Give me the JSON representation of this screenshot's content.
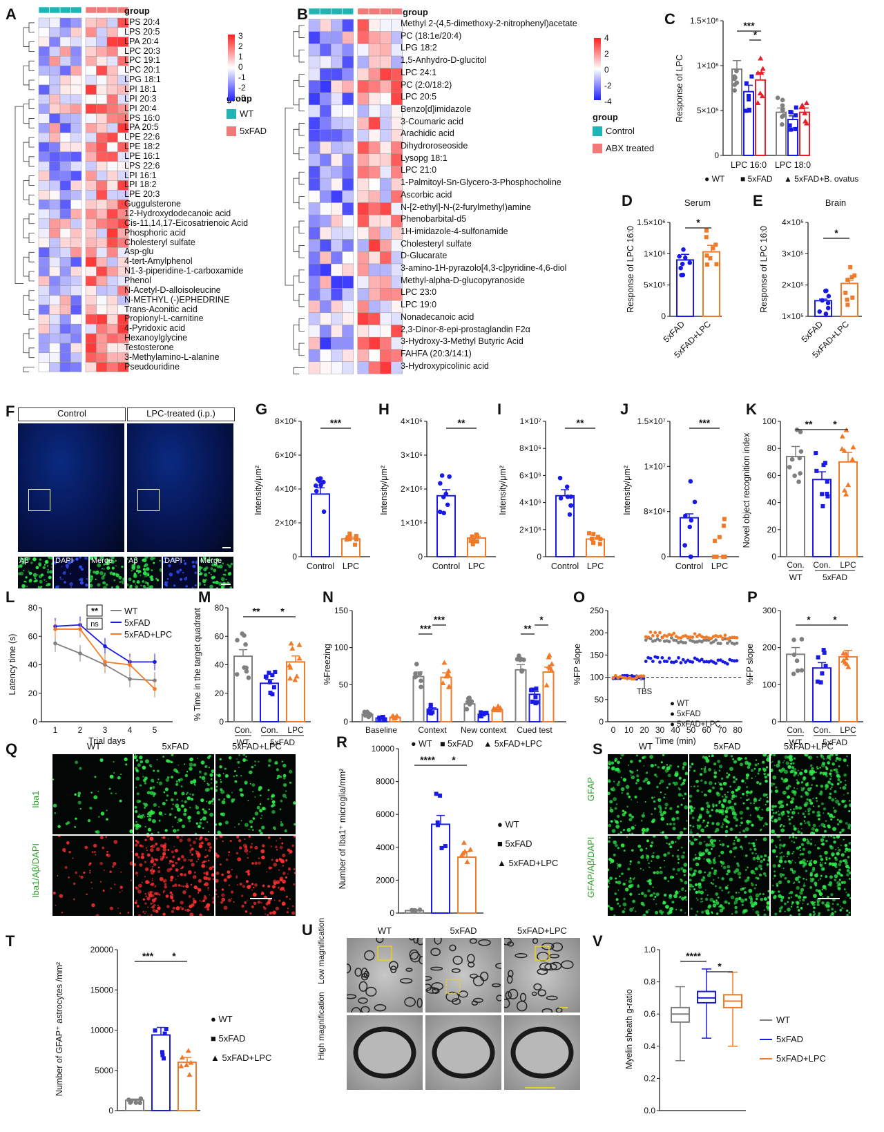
{
  "panels": {
    "A": {
      "label": "A",
      "group_title": "group",
      "legend_title": "group",
      "legend": [
        {
          "name": "WT",
          "color": "#1fb5b5"
        },
        {
          "name": "5xFAD",
          "color": "#f07a7a"
        }
      ],
      "scale_ticks": [
        "3",
        "2",
        "1",
        "0",
        "-1",
        "-2",
        "-3"
      ],
      "metabolites": [
        "LPS 20:4",
        "LPS 20:5",
        "LPA 20:4",
        "LPC 20:3",
        "LPC 19:1",
        "LPC 20:1",
        "LPG 18:1",
        "LPI 18:1",
        "LPI 20:3",
        "LPI 20:4",
        "LPS 16:0",
        "LPA 20:5",
        "LPE 22:6",
        "LPE 18:2",
        "LPE 16:1",
        "LPS 22:6",
        "LPI 16:1",
        "LPI 18:2",
        "LPE 20:3",
        "Guggulsterone",
        "12-Hydroxydodecanoic acid",
        "Cis-11,14,17-Eicosatrienoic Acid",
        "Phosphoric acid",
        "Cholesteryl sulfate",
        "Asp-glu",
        "4-tert-Amylphenol",
        "N1-3-piperidine-1-carboxamide",
        "Phenol",
        "N-Acetyl-D-alloisoleucine",
        "N-METHYL (-)EPHEDRINE",
        "Trans-Aconitic acid",
        "Propionyl-L-carnitine",
        "4-Pyridoxic acid",
        "Hexanoylglycine",
        "Testosterone",
        "3-Methylamino-L-alanine",
        "Pseudouridine"
      ]
    },
    "B": {
      "label": "B",
      "group_title": "group",
      "legend_title": "group",
      "legend": [
        {
          "name": "Control",
          "color": "#1fb5b5"
        },
        {
          "name": "ABX treated",
          "color": "#f07a7a"
        }
      ],
      "scale_ticks": [
        "4",
        "2",
        "0",
        "-2",
        "-4"
      ],
      "metabolites": [
        "Methyl 2-(4,5-dimethoxy-2-nitrophenyl)acetate",
        "PC (18:1e/20:4)",
        "LPG 18:2",
        "1,5-Anhydro-D-glucitol",
        "LPC 24:1",
        "PC (2:0/18:2)",
        "LPC 20:5",
        "Benzo[d]imidazole",
        "3-Coumaric acid",
        "Arachidic acid",
        "Dihydroroseoside",
        "Lysopg 18:1",
        "LPC 21:0",
        "1-Palmitoyl-Sn-Glycero-3-Phosphocholine",
        "Ascorbic acid",
        "N-[2-ethyl]-N-(2-furylmethyl)amine",
        "Phenobarbital-d5",
        "1H-imidazole-4-sulfonamide",
        "Cholesteryl sulfate",
        "D-Glucarate",
        "3-amino-1H-pyrazolo[4,3-c]pyridine-4,6-diol",
        "Methyl-alpha-D-glucopyranoside",
        "LPC 23:0",
        "LPC 19:0",
        "Nonadecanoic acid",
        "2,3-Dinor-8-epi-prostaglandin F2α",
        "3-Hydroxy-3-Methyl Butyric Acid",
        "FAHFA (20:3/14:1)",
        "3-Hydroxypicolinic acid"
      ]
    },
    "C": {
      "label": "C",
      "ylabel": "Response of LPC",
      "yticks": [
        "1.5×10⁶",
        "1×10⁶",
        "5×10⁵",
        "0"
      ],
      "categories": [
        "LPC 16:0",
        "LPC 18:0"
      ],
      "sig": [
        "***",
        "*"
      ],
      "legend": [
        "WT",
        "5xFAD",
        "5xFAD+B. ovatus"
      ]
    },
    "D": {
      "label": "D",
      "title": "Serum",
      "ylabel": "Response of LPC 16:0",
      "yticks": [
        "1.5×10⁶",
        "1×10⁶",
        "5×10⁵",
        "0"
      ],
      "xticks": [
        "5xFAD",
        "5xFAD+LPC"
      ],
      "sig": "*"
    },
    "E": {
      "label": "E",
      "title": "Brain",
      "ylabel": "Response of LPC 16:0",
      "yticks": [
        "4×10⁵",
        "3×10⁵",
        "2×10⁵",
        "1×10⁵"
      ],
      "xticks": [
        "5xFAD",
        "5xFAD+LPC"
      ],
      "sig": "*"
    },
    "F": {
      "label": "F",
      "headers": [
        "Control",
        "LPC-treated (i.p.)"
      ],
      "insets": [
        "Aβ",
        "DAPI",
        "Merge"
      ]
    },
    "G": {
      "label": "G",
      "ylabel": "Intensity/μm²",
      "yticks": [
        "8×10⁶",
        "6×10⁶",
        "4×10⁶",
        "2×10⁶",
        "0"
      ],
      "xticks": [
        "Control",
        "LPC"
      ],
      "sig": "***"
    },
    "H": {
      "label": "H",
      "ylabel": "Intensity/μm²",
      "yticks": [
        "4×10⁶",
        "3×10⁶",
        "2×10⁶",
        "1×10⁶",
        "0"
      ],
      "xticks": [
        "Control",
        "LPC"
      ],
      "sig": "**"
    },
    "I": {
      "label": "I",
      "ylabel": "Intensity/μm²",
      "yticks": [
        "1×10⁷",
        "8×10⁶",
        "6×10⁶",
        "4×10⁶",
        "2×10⁶",
        "0"
      ],
      "xticks": [
        "Control",
        "LPC"
      ],
      "sig": "**"
    },
    "J": {
      "label": "J",
      "ylabel": "Intensity/μm²",
      "yticks": [
        "1.5×10⁷",
        "1×10⁷",
        "8×10⁶",
        "0"
      ],
      "xticks": [
        "Control",
        "LPC"
      ],
      "sig": "***"
    },
    "K": {
      "label": "K",
      "ylabel": "Novel object recognition index",
      "yticks": [
        "100",
        "80",
        "60",
        "40",
        "20",
        "0"
      ],
      "xticks": [
        "Con.",
        "Con.",
        "LPC"
      ],
      "groups": [
        "WT",
        "5xFAD"
      ],
      "sig": [
        "**",
        "*"
      ]
    },
    "L": {
      "label": "L",
      "ylabel": "Latency time (s)",
      "xlabel": "Trial days",
      "yticks": [
        "80",
        "60",
        "40",
        "20",
        "0"
      ],
      "xticks": [
        "1",
        "2",
        "3",
        "4",
        "5"
      ],
      "legend": [
        "WT",
        "5xFAD",
        "5xFAD+LPC"
      ],
      "sig": [
        "**",
        "ns"
      ]
    },
    "M": {
      "label": "M",
      "ylabel": "% Time  in the target quadrant",
      "yticks": [
        "80",
        "60",
        "40",
        "20",
        "0"
      ],
      "xticks": [
        "Con.",
        "Con.",
        "LPC"
      ],
      "groups": [
        "WT",
        "5xFAD"
      ],
      "sig": [
        "**",
        "*"
      ]
    },
    "N": {
      "label": "N",
      "ylabel": "%Freezing",
      "yticks": [
        "150",
        "100",
        "50",
        "0"
      ],
      "xticks": [
        "Baseline",
        "Context",
        "New context",
        "Cued test"
      ],
      "legend": [
        "WT",
        "5xFAD",
        "5xFAD+LPC"
      ],
      "sig": [
        "***",
        "***",
        "**",
        "*"
      ]
    },
    "O": {
      "label": "O",
      "ylabel": "%FP slope",
      "xlabel": "Time (min)",
      "yticks": [
        "250",
        "200",
        "150",
        "100",
        "50",
        "0"
      ],
      "xticks": [
        "0",
        "10",
        "20",
        "30",
        "40",
        "50",
        "60",
        "70",
        "80"
      ],
      "annotation": "TBS",
      "legend": [
        "WT",
        "5xFAD",
        "5xFAD+LPC"
      ]
    },
    "P": {
      "label": "P",
      "ylabel": "%FP slope",
      "yticks": [
        "300",
        "200",
        "100",
        "0"
      ],
      "xticks": [
        "Con.",
        "Con.",
        "LPC"
      ],
      "groups": [
        "WT",
        "5xFAD"
      ],
      "sig": [
        "*",
        "*"
      ]
    },
    "Q": {
      "label": "Q",
      "columns": [
        "WT",
        "5xFAD",
        "5xFAD+LPC"
      ],
      "rows": [
        "Iba1",
        "Iba1/Aβ/DAPI"
      ]
    },
    "R": {
      "label": "R",
      "ylabel": "Number of Iba1⁺ microglia/mm²",
      "yticks": [
        "10000",
        "8000",
        "6000",
        "4000",
        "2000",
        "0"
      ],
      "legend": [
        "WT",
        "5xFAD",
        "5xFAD+LPC"
      ],
      "sig": [
        "****",
        "*"
      ]
    },
    "S": {
      "label": "S",
      "columns": [
        "WT",
        "5xFAD",
        "5xFAD+LPC"
      ],
      "rows": [
        "GFAP",
        "GFAP/Aβ/DAPI"
      ]
    },
    "T": {
      "label": "T",
      "ylabel": "Number of GFAP⁺ astrocytes /mm²",
      "yticks": [
        "20000",
        "15000",
        "10000",
        "5000",
        "0"
      ],
      "legend": [
        "WT",
        "5xFAD",
        "5xFAD+LPC"
      ],
      "sig": [
        "***",
        "*"
      ]
    },
    "U": {
      "label": "U",
      "columns": [
        "WT",
        "5xFAD",
        "5xFAD+LPC"
      ],
      "rows": [
        "Low magnification",
        "High magnification"
      ]
    },
    "V": {
      "label": "V",
      "ylabel": "Myelin sheath g-ratio",
      "yticks": [
        "1.0",
        "0.8",
        "0.6",
        "0.4",
        "0.2",
        "0.0"
      ],
      "legend": [
        "WT",
        "5xFAD",
        "5xFAD+LPC"
      ],
      "sig": [
        "****",
        "*"
      ]
    }
  },
  "colors": {
    "wt": "#7f7f7f",
    "fad": "#1a1ae6",
    "lpc": "#f07a28",
    "bov": "#e8202a",
    "teal": "#1fb5b5",
    "salmon": "#f07a7a"
  },
  "chart_data": [
    {
      "panel": "C",
      "type": "bar",
      "categories": [
        "LPC 16:0",
        "LPC 18:0"
      ],
      "series": [
        {
          "name": "WT",
          "values": [
            960000,
            480000
          ]
        },
        {
          "name": "5xFAD",
          "values": [
            710000,
            400000
          ]
        },
        {
          "name": "5xFAD+B. ovatus",
          "values": [
            840000,
            480000
          ]
        }
      ],
      "ylim": [
        0,
        1500000
      ]
    },
    {
      "panel": "D",
      "type": "bar",
      "categories": [
        "5xFAD",
        "5xFAD+LPC"
      ],
      "values": [
        900000,
        1030000
      ],
      "ylim": [
        0,
        1500000
      ]
    },
    {
      "panel": "E",
      "type": "bar",
      "categories": [
        "5xFAD",
        "5xFAD+LPC"
      ],
      "values": [
        150000,
        205000
      ],
      "ylim": [
        100000,
        400000
      ]
    },
    {
      "panel": "G",
      "type": "bar",
      "categories": [
        "Control",
        "LPC"
      ],
      "values": [
        3700000,
        1050000
      ],
      "ylim": [
        0,
        8000000
      ]
    },
    {
      "panel": "H",
      "type": "bar",
      "categories": [
        "Control",
        "LPC"
      ],
      "values": [
        1800000,
        550000
      ],
      "ylim": [
        0,
        4000000
      ]
    },
    {
      "panel": "I",
      "type": "bar",
      "categories": [
        "Control",
        "LPC"
      ],
      "values": [
        4500000,
        1300000
      ],
      "ylim": [
        0,
        10000000
      ]
    },
    {
      "panel": "K",
      "type": "bar",
      "categories": [
        "WT Con.",
        "5xFAD Con.",
        "5xFAD LPC"
      ],
      "values": [
        74,
        57,
        70
      ],
      "ylim": [
        0,
        100
      ]
    },
    {
      "panel": "L",
      "type": "line",
      "x": [
        1,
        2,
        3,
        4,
        5
      ],
      "series": [
        {
          "name": "WT",
          "values": [
            55,
            48,
            40,
            30,
            29
          ]
        },
        {
          "name": "5xFAD",
          "values": [
            67,
            68,
            53,
            42,
            42
          ]
        },
        {
          "name": "5xFAD+LPC",
          "values": [
            65,
            65,
            42,
            40,
            23
          ]
        }
      ],
      "ylim": [
        0,
        80
      ]
    },
    {
      "panel": "M",
      "type": "bar",
      "categories": [
        "WT Con.",
        "5xFAD Con.",
        "5xFAD LPC"
      ],
      "values": [
        46,
        27,
        42
      ],
      "ylim": [
        0,
        80
      ]
    },
    {
      "panel": "N",
      "type": "bar",
      "categories": [
        "Baseline",
        "Context",
        "New context",
        "Cued test"
      ],
      "series": [
        {
          "name": "WT",
          "values": [
            10,
            61,
            24,
            70
          ]
        },
        {
          "name": "5xFAD",
          "values": [
            5,
            17,
            10,
            37
          ]
        },
        {
          "name": "5xFAD+LPC",
          "values": [
            6,
            60,
            16,
            67
          ]
        }
      ],
      "ylim": [
        0,
        150
      ]
    },
    {
      "panel": "P",
      "type": "bar",
      "categories": [
        "WT Con.",
        "5xFAD Con.",
        "5xFAD LPC"
      ],
      "values": [
        182,
        145,
        175
      ],
      "ylim": [
        0,
        300
      ]
    },
    {
      "panel": "R",
      "type": "bar",
      "categories": [
        "WT",
        "5xFAD",
        "5xFAD+LPC"
      ],
      "values": [
        150,
        5400,
        3400
      ],
      "ylim": [
        0,
        10000
      ]
    },
    {
      "panel": "T",
      "type": "bar",
      "categories": [
        "WT",
        "5xFAD",
        "5xFAD+LPC"
      ],
      "values": [
        1300,
        9400,
        6000
      ],
      "ylim": [
        0,
        20000
      ]
    },
    {
      "panel": "V",
      "type": "box",
      "categories": [
        "WT",
        "5xFAD",
        "5xFAD+LPC"
      ],
      "series": [
        {
          "name": "WT",
          "min": 0.31,
          "q1": 0.55,
          "median": 0.6,
          "q3": 0.64,
          "max": 0.77
        },
        {
          "name": "5xFAD",
          "min": 0.45,
          "q1": 0.67,
          "median": 0.7,
          "q3": 0.74,
          "max": 0.88
        },
        {
          "name": "5xFAD+LPC",
          "min": 0.4,
          "q1": 0.64,
          "median": 0.68,
          "q3": 0.72,
          "max": 0.86
        }
      ],
      "ylim": [
        0,
        1
      ]
    }
  ]
}
